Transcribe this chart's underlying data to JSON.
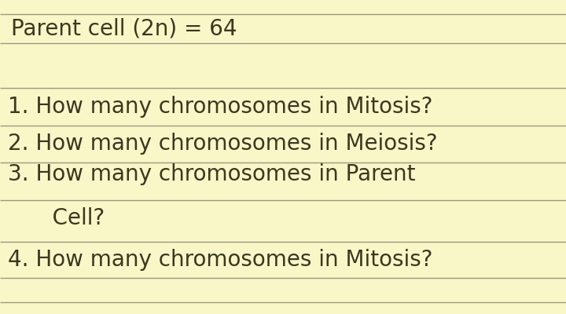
{
  "background_color": "#f9f7c8",
  "line_color": "#9a9980",
  "text_color": "#3a3820",
  "header_text": "Parent cell (2n) = 64",
  "q1": "1. How many chromosomes in Mitosis?",
  "q2": "2. How many chromosomes in Meiosis?",
  "q3a": "3. How many chromosomes in Parent",
  "q3b": "   Cell?",
  "q4": "4. How many chromosomes in Mitosis?",
  "font_size_header": 20,
  "font_size_questions": 20,
  "line_width": 1.0,
  "fig_width": 7.2,
  "fig_height": 4.0,
  "dpi": 100
}
